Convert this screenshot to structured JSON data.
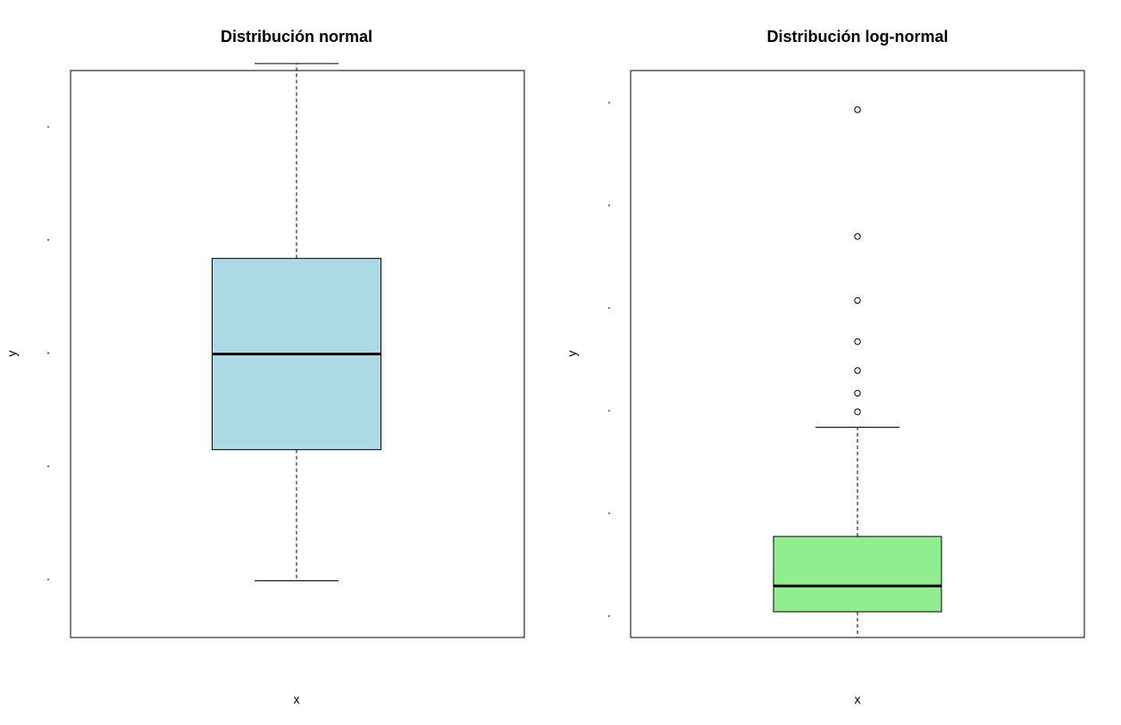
{
  "chart_data": [
    {
      "type": "boxplot",
      "title": "Distribución normal",
      "xlabel": "x",
      "ylabel": "y",
      "box_color": "#add8e6",
      "y_tick_labels_visible": false,
      "y_tick_count": 5,
      "ylim": [
        -4.0,
        4.0
      ],
      "grid": false,
      "legend": "none",
      "box": {
        "whisker_low": -3.2,
        "q1": -1.35,
        "median": 0.0,
        "q3": 1.35,
        "whisker_high": 4.1
      },
      "outliers": []
    },
    {
      "type": "boxplot",
      "title": "Distribución log-normal",
      "xlabel": "x",
      "ylabel": "y",
      "box_color": "#90ee90",
      "y_tick_labels_visible": false,
      "y_tick_count": 6,
      "ylim": [
        0,
        5.5
      ],
      "grid": false,
      "legend": "none",
      "box": {
        "whisker_low": 0.0,
        "q1": 0.25,
        "median": 0.5,
        "q3": 0.98,
        "whisker_high": 2.04
      },
      "outliers": [
        2.19,
        2.37,
        2.59,
        2.87,
        3.27,
        3.89,
        5.12
      ]
    }
  ]
}
